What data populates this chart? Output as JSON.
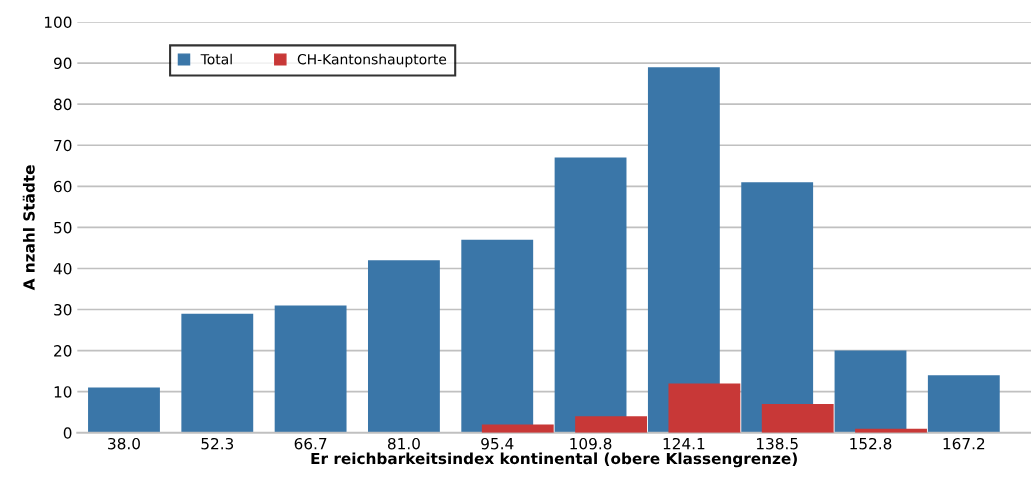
{
  "chart_data": {
    "type": "bar",
    "xlabel": "Er reichbarkeitsindex kontinental (obere Klassengrenze)",
    "ylabel": "A nzahl Städte",
    "categories": [
      "38.0",
      "52.3",
      "66.7",
      "81.0",
      "95.4",
      "109.8",
      "124.1",
      "138.5",
      "152.8",
      "167.2"
    ],
    "series": [
      {
        "name": "Total",
        "color": "#3a76a8",
        "values": [
          11,
          29,
          31,
          42,
          47,
          67,
          89,
          61,
          20,
          14
        ]
      },
      {
        "name": "CH-Kantonshauptorte",
        "color": "#c83837",
        "values": [
          0,
          0,
          0,
          0,
          2,
          4,
          12,
          7,
          1,
          0
        ]
      }
    ],
    "ylim": [
      0,
      100
    ],
    "yticks": [
      0,
      10,
      20,
      30,
      40,
      50,
      60,
      70,
      80,
      90,
      100
    ],
    "grid": "y",
    "legend": "top left"
  }
}
